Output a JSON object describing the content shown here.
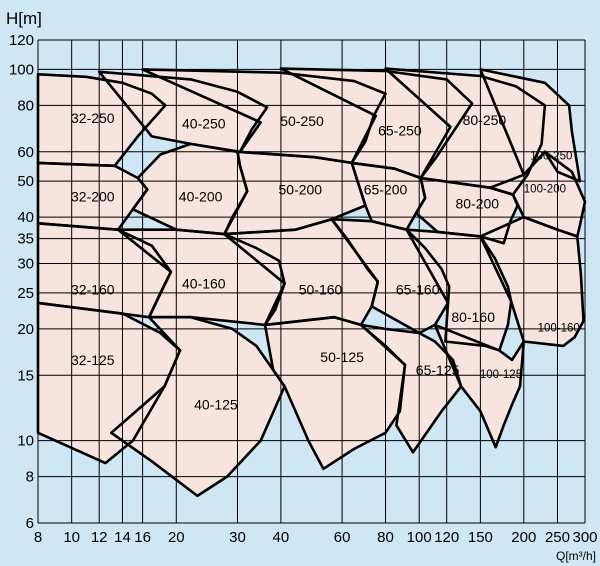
{
  "chart_data": {
    "type": "area",
    "title": "",
    "ylabel": "H[m]",
    "xlabel": "Q[m³/h]",
    "x_scale": "log",
    "y_scale": "log",
    "xlim": [
      8,
      300
    ],
    "ylim": [
      6,
      120
    ],
    "grid": true,
    "x_ticks": [
      {
        "value": 8,
        "label": "8"
      },
      {
        "value": 10,
        "label": "10"
      },
      {
        "value": 12,
        "label": "12"
      },
      {
        "value": 14,
        "label": "14"
      },
      {
        "value": 16,
        "label": "16"
      },
      {
        "value": 20,
        "label": "20"
      },
      {
        "value": 30,
        "label": "30"
      },
      {
        "value": 40,
        "label": "40"
      },
      {
        "value": 60,
        "label": "60"
      },
      {
        "value": 80,
        "label": "80"
      },
      {
        "value": 100,
        "label": "100"
      },
      {
        "value": 120,
        "label": "120"
      },
      {
        "value": 150,
        "label": "150"
      },
      {
        "value": 200,
        "label": "200"
      },
      {
        "value": 250,
        "label": "250"
      },
      {
        "value": 300,
        "label": "300"
      }
    ],
    "y_ticks": [
      {
        "value": 6,
        "label": "6"
      },
      {
        "value": 8,
        "label": "8"
      },
      {
        "value": 10,
        "label": "10"
      },
      {
        "value": 15,
        "label": "15"
      },
      {
        "value": 20,
        "label": "20"
      },
      {
        "value": 25,
        "label": "25"
      },
      {
        "value": 30,
        "label": "30"
      },
      {
        "value": 35,
        "label": "35"
      },
      {
        "value": 40,
        "label": "40"
      },
      {
        "value": 50,
        "label": "50"
      },
      {
        "value": 60,
        "label": "60"
      },
      {
        "value": 80,
        "label": "80"
      },
      {
        "value": 100,
        "label": "100"
      },
      {
        "value": 120,
        "label": "120"
      }
    ],
    "colors": {
      "background": "#cfe6f5",
      "region_fill": "#f8e4de",
      "outline": "#000000",
      "grid": "#000000"
    },
    "ranges": [
      {
        "label": "32-250",
        "label_at": [
          11.5,
          74
        ],
        "outline": [
          [
            8,
            97
          ],
          [
            11,
            95.5
          ],
          [
            14,
            92
          ],
          [
            17,
            86
          ],
          [
            18.6,
            80
          ],
          [
            15.5,
            66
          ],
          [
            13.3,
            55
          ],
          [
            8,
            56
          ]
        ]
      },
      {
        "label": "40-250",
        "label_at": [
          24,
          71.5
        ],
        "outline": [
          [
            12,
            98.5
          ],
          [
            22,
            94
          ],
          [
            30,
            87
          ],
          [
            36.5,
            79
          ],
          [
            33,
            69
          ],
          [
            30.5,
            60
          ],
          [
            22,
            63
          ],
          [
            17,
            66
          ]
        ]
      },
      {
        "label": "50-250",
        "label_at": [
          46,
          72.5
        ],
        "outline": [
          [
            16,
            100
          ],
          [
            40,
            98
          ],
          [
            65,
            93
          ],
          [
            80,
            86
          ],
          [
            74,
            75
          ],
          [
            70,
            64
          ],
          [
            64,
            56
          ],
          [
            50,
            58
          ],
          [
            30.5,
            60
          ],
          [
            35,
            72
          ]
        ]
      },
      {
        "label": "65-250",
        "label_at": [
          88,
          68.5
        ],
        "outline": [
          [
            40,
            100.5
          ],
          [
            80,
            99
          ],
          [
            120,
            94
          ],
          [
            142,
            81
          ],
          [
            128,
            70
          ],
          [
            112,
            58
          ],
          [
            101,
            51
          ],
          [
            85,
            54
          ],
          [
            64,
            56
          ],
          [
            75,
            75
          ]
        ]
      },
      {
        "label": "80-250",
        "label_at": [
          154,
          73
        ],
        "outline": [
          [
            80,
            100.5
          ],
          [
            150,
            96
          ],
          [
            190,
            90
          ],
          [
            230,
            80
          ],
          [
            225,
            63
          ],
          [
            205,
            52
          ],
          [
            186,
            46
          ],
          [
            160,
            48
          ],
          [
            101,
            51
          ],
          [
            123,
            70
          ]
        ]
      },
      {
        "label": "100-250",
        "label_at": [
          240,
          59
        ],
        "outline": [
          [
            150,
            100
          ],
          [
            230,
            92
          ],
          [
            270,
            80
          ],
          [
            275,
            68
          ],
          [
            290,
            50
          ],
          [
            250,
            53
          ],
          [
            230,
            60
          ],
          [
            200,
            52
          ]
        ]
      },
      {
        "label": "32-200",
        "label_at": [
          11.5,
          45.5
        ],
        "outline": [
          [
            8,
            56
          ],
          [
            13.3,
            55
          ],
          [
            15.5,
            51
          ],
          [
            16.5,
            47.5
          ],
          [
            15,
            42
          ],
          [
            13.6,
            37
          ],
          [
            8,
            38.5
          ]
        ]
      },
      {
        "label": "40-200",
        "label_at": [
          23.5,
          45.5
        ],
        "outline": [
          [
            15.5,
            51
          ],
          [
            18,
            59
          ],
          [
            22,
            63
          ],
          [
            30,
            60
          ],
          [
            30.5,
            55
          ],
          [
            32,
            47
          ],
          [
            29,
            40
          ],
          [
            27.5,
            36
          ],
          [
            20,
            37
          ],
          [
            15,
            42
          ],
          [
            16.5,
            47.5
          ]
        ]
      },
      {
        "label": "50-200",
        "label_at": [
          45.5,
          47.5
        ],
        "outline": [
          [
            30,
            60
          ],
          [
            50,
            58
          ],
          [
            64,
            56
          ],
          [
            66,
            51
          ],
          [
            70,
            43
          ],
          [
            56,
            39.5
          ],
          [
            44,
            37
          ],
          [
            27.5,
            36
          ],
          [
            32,
            47
          ],
          [
            30.5,
            55
          ]
        ]
      },
      {
        "label": "65-200",
        "label_at": [
          80,
          47.5
        ],
        "outline": [
          [
            64,
            56
          ],
          [
            85,
            54
          ],
          [
            101,
            51
          ],
          [
            104,
            45
          ],
          [
            98,
            41
          ],
          [
            92,
            37
          ],
          [
            73,
            39
          ],
          [
            70,
            43
          ],
          [
            66,
            51
          ]
        ]
      },
      {
        "label": "80-200",
        "label_at": [
          147,
          43.5
        ],
        "outline": [
          [
            101,
            51
          ],
          [
            160,
            48
          ],
          [
            186,
            46
          ],
          [
            192,
            43
          ],
          [
            183,
            39
          ],
          [
            175,
            34
          ],
          [
            150,
            35.5
          ],
          [
            113,
            36.5
          ],
          [
            98,
            41
          ],
          [
            104,
            45
          ]
        ]
      },
      {
        "label": "100-200",
        "label_at": [
          230,
          48
        ],
        "outline": [
          [
            160,
            48
          ],
          [
            200,
            52
          ],
          [
            230,
            60
          ],
          [
            275,
            53
          ],
          [
            300,
            44
          ],
          [
            290,
            38
          ],
          [
            285,
            35.5
          ],
          [
            250,
            37
          ],
          [
            200,
            40
          ],
          [
            186,
            46
          ]
        ]
      },
      {
        "label": "32-160",
        "label_at": [
          11.5,
          25.5
        ],
        "outline": [
          [
            8,
            38.5
          ],
          [
            13.6,
            37
          ],
          [
            17,
            33.5
          ],
          [
            19.3,
            28.5
          ],
          [
            18,
            25
          ],
          [
            16.7,
            21.5
          ],
          [
            8,
            23.5
          ]
        ]
      },
      {
        "label": "40-160",
        "label_at": [
          24,
          26.5
        ],
        "outline": [
          [
            13.6,
            37
          ],
          [
            20,
            37
          ],
          [
            27.5,
            36
          ],
          [
            34,
            33
          ],
          [
            39.5,
            30.5
          ],
          [
            41,
            26.5
          ],
          [
            38.5,
            22.5
          ],
          [
            36,
            20.5
          ],
          [
            22,
            21.5
          ],
          [
            16.7,
            21.5
          ],
          [
            19.3,
            28.5
          ]
        ]
      },
      {
        "label": "50-160",
        "label_at": [
          52,
          25.5
        ],
        "outline": [
          [
            27.5,
            36
          ],
          [
            44,
            37
          ],
          [
            56,
            39.5
          ],
          [
            62,
            35
          ],
          [
            71,
            29
          ],
          [
            76,
            26.8
          ],
          [
            73,
            23
          ],
          [
            68,
            20.5
          ],
          [
            57,
            21.5
          ],
          [
            36,
            20.5
          ],
          [
            41,
            26.5
          ]
        ]
      },
      {
        "label": "65-160",
        "label_at": [
          99,
          25.5
        ],
        "outline": [
          [
            56,
            39.5
          ],
          [
            73,
            39
          ],
          [
            92,
            37
          ],
          [
            104,
            33
          ],
          [
            116,
            29
          ],
          [
            122,
            26
          ],
          [
            121,
            23.5
          ],
          [
            111,
            20.5
          ],
          [
            100,
            19.5
          ],
          [
            73,
            23
          ],
          [
            76,
            26.8
          ]
        ]
      },
      {
        "label": "80-160",
        "label_at": [
          143,
          21.5
        ],
        "outline": [
          [
            92,
            37
          ],
          [
            113,
            36.5
          ],
          [
            150,
            35.5
          ],
          [
            165,
            31
          ],
          [
            180,
            26
          ],
          [
            184,
            23.7
          ],
          [
            180,
            20.5
          ],
          [
            170,
            17.5
          ],
          [
            155,
            18
          ],
          [
            119,
            18.5
          ],
          [
            121,
            23.5
          ]
        ]
      },
      {
        "label": "100-160",
        "label_at": [
          252,
          20.3
        ],
        "outline": [
          [
            150,
            35.5
          ],
          [
            200,
            40
          ],
          [
            250,
            37
          ],
          [
            285,
            35.5
          ],
          [
            292,
            28
          ],
          [
            297,
            21
          ],
          [
            280,
            19
          ],
          [
            260,
            18
          ],
          [
            200,
            18.5
          ],
          [
            184,
            23.7
          ]
        ]
      },
      {
        "label": "32-125",
        "label_at": [
          11.5,
          16.5
        ],
        "outline": [
          [
            8,
            23.5
          ],
          [
            14,
            22
          ],
          [
            18,
            19.5
          ],
          [
            20.5,
            17.5
          ],
          [
            18.5,
            14
          ],
          [
            15,
            10
          ],
          [
            12.5,
            8.7
          ],
          [
            8,
            10.5
          ]
        ]
      },
      {
        "label": "40-125",
        "label_at": [
          26,
          12.5
        ],
        "outline": [
          [
            16.7,
            21.5
          ],
          [
            22,
            21.5
          ],
          [
            29,
            20
          ],
          [
            34,
            18
          ],
          [
            38,
            15.5
          ],
          [
            41,
            14
          ],
          [
            35,
            10
          ],
          [
            28,
            8
          ],
          [
            23,
            7.1
          ],
          [
            17,
            8.8
          ],
          [
            13,
            10.5
          ],
          [
            18.5,
            14
          ],
          [
            20.5,
            17.5
          ]
        ]
      },
      {
        "label": "50-125",
        "label_at": [
          60,
          16.8
        ],
        "outline": [
          [
            36,
            20.5
          ],
          [
            57,
            21.5
          ],
          [
            68,
            20.5
          ],
          [
            80,
            18
          ],
          [
            91,
            16
          ],
          [
            88,
            12
          ],
          [
            80,
            10.5
          ],
          [
            65,
            9.5
          ],
          [
            53,
            8.4
          ],
          [
            48,
            10
          ],
          [
            41,
            14
          ],
          [
            38,
            15.5
          ]
        ]
      },
      {
        "label": "65-125",
        "label_at": [
          113,
          15.5
        ],
        "outline": [
          [
            68,
            20.5
          ],
          [
            80,
            20
          ],
          [
            100,
            19.5
          ],
          [
            111,
            18.5
          ],
          [
            125,
            16.5
          ],
          [
            132,
            14
          ],
          [
            116,
            12
          ],
          [
            105,
            10.5
          ],
          [
            96,
            9.3
          ],
          [
            86,
            11
          ],
          [
            91,
            16
          ]
        ]
      },
      {
        "label": "100-125",
        "label_at": [
          172,
          15.2
        ],
        "outline": [
          [
            111,
            20.5
          ],
          [
            170,
            17.5
          ],
          [
            185,
            16.5
          ],
          [
            200,
            18.5
          ],
          [
            195,
            14
          ],
          [
            185,
            12.5
          ],
          [
            175,
            11
          ],
          [
            166,
            9.6
          ],
          [
            150,
            12
          ],
          [
            132,
            14
          ]
        ]
      }
    ]
  }
}
